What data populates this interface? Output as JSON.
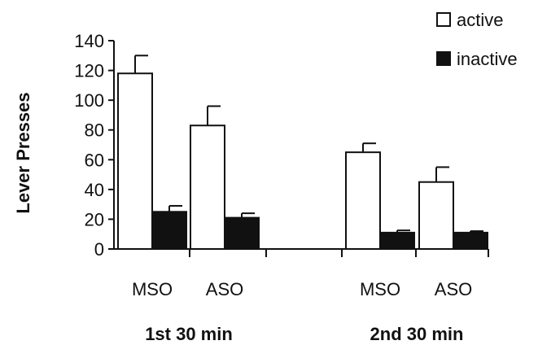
{
  "chart_data": {
    "type": "bar",
    "ylabel": "Lever Presses",
    "xlabel": "",
    "ylim": [
      0,
      140
    ],
    "yticks": [
      0,
      20,
      40,
      60,
      80,
      100,
      120,
      140
    ],
    "grid": false,
    "legend_position": "top-right",
    "groups": [
      {
        "label": "1st 30 min",
        "categories": [
          "MSO",
          "ASO"
        ]
      },
      {
        "label": "2nd 30 min",
        "categories": [
          "MSO",
          "ASO"
        ]
      }
    ],
    "categories": [
      "MSO",
      "ASO",
      "MSO",
      "ASO"
    ],
    "series": [
      {
        "name": "active",
        "color": "#ffffff",
        "values": [
          118,
          83,
          65,
          45
        ],
        "errors": [
          12,
          13,
          6,
          10
        ]
      },
      {
        "name": "inactive",
        "color": "#111111",
        "values": [
          25,
          21,
          11,
          11
        ],
        "errors": [
          4,
          3,
          1.5,
          1
        ]
      }
    ]
  }
}
